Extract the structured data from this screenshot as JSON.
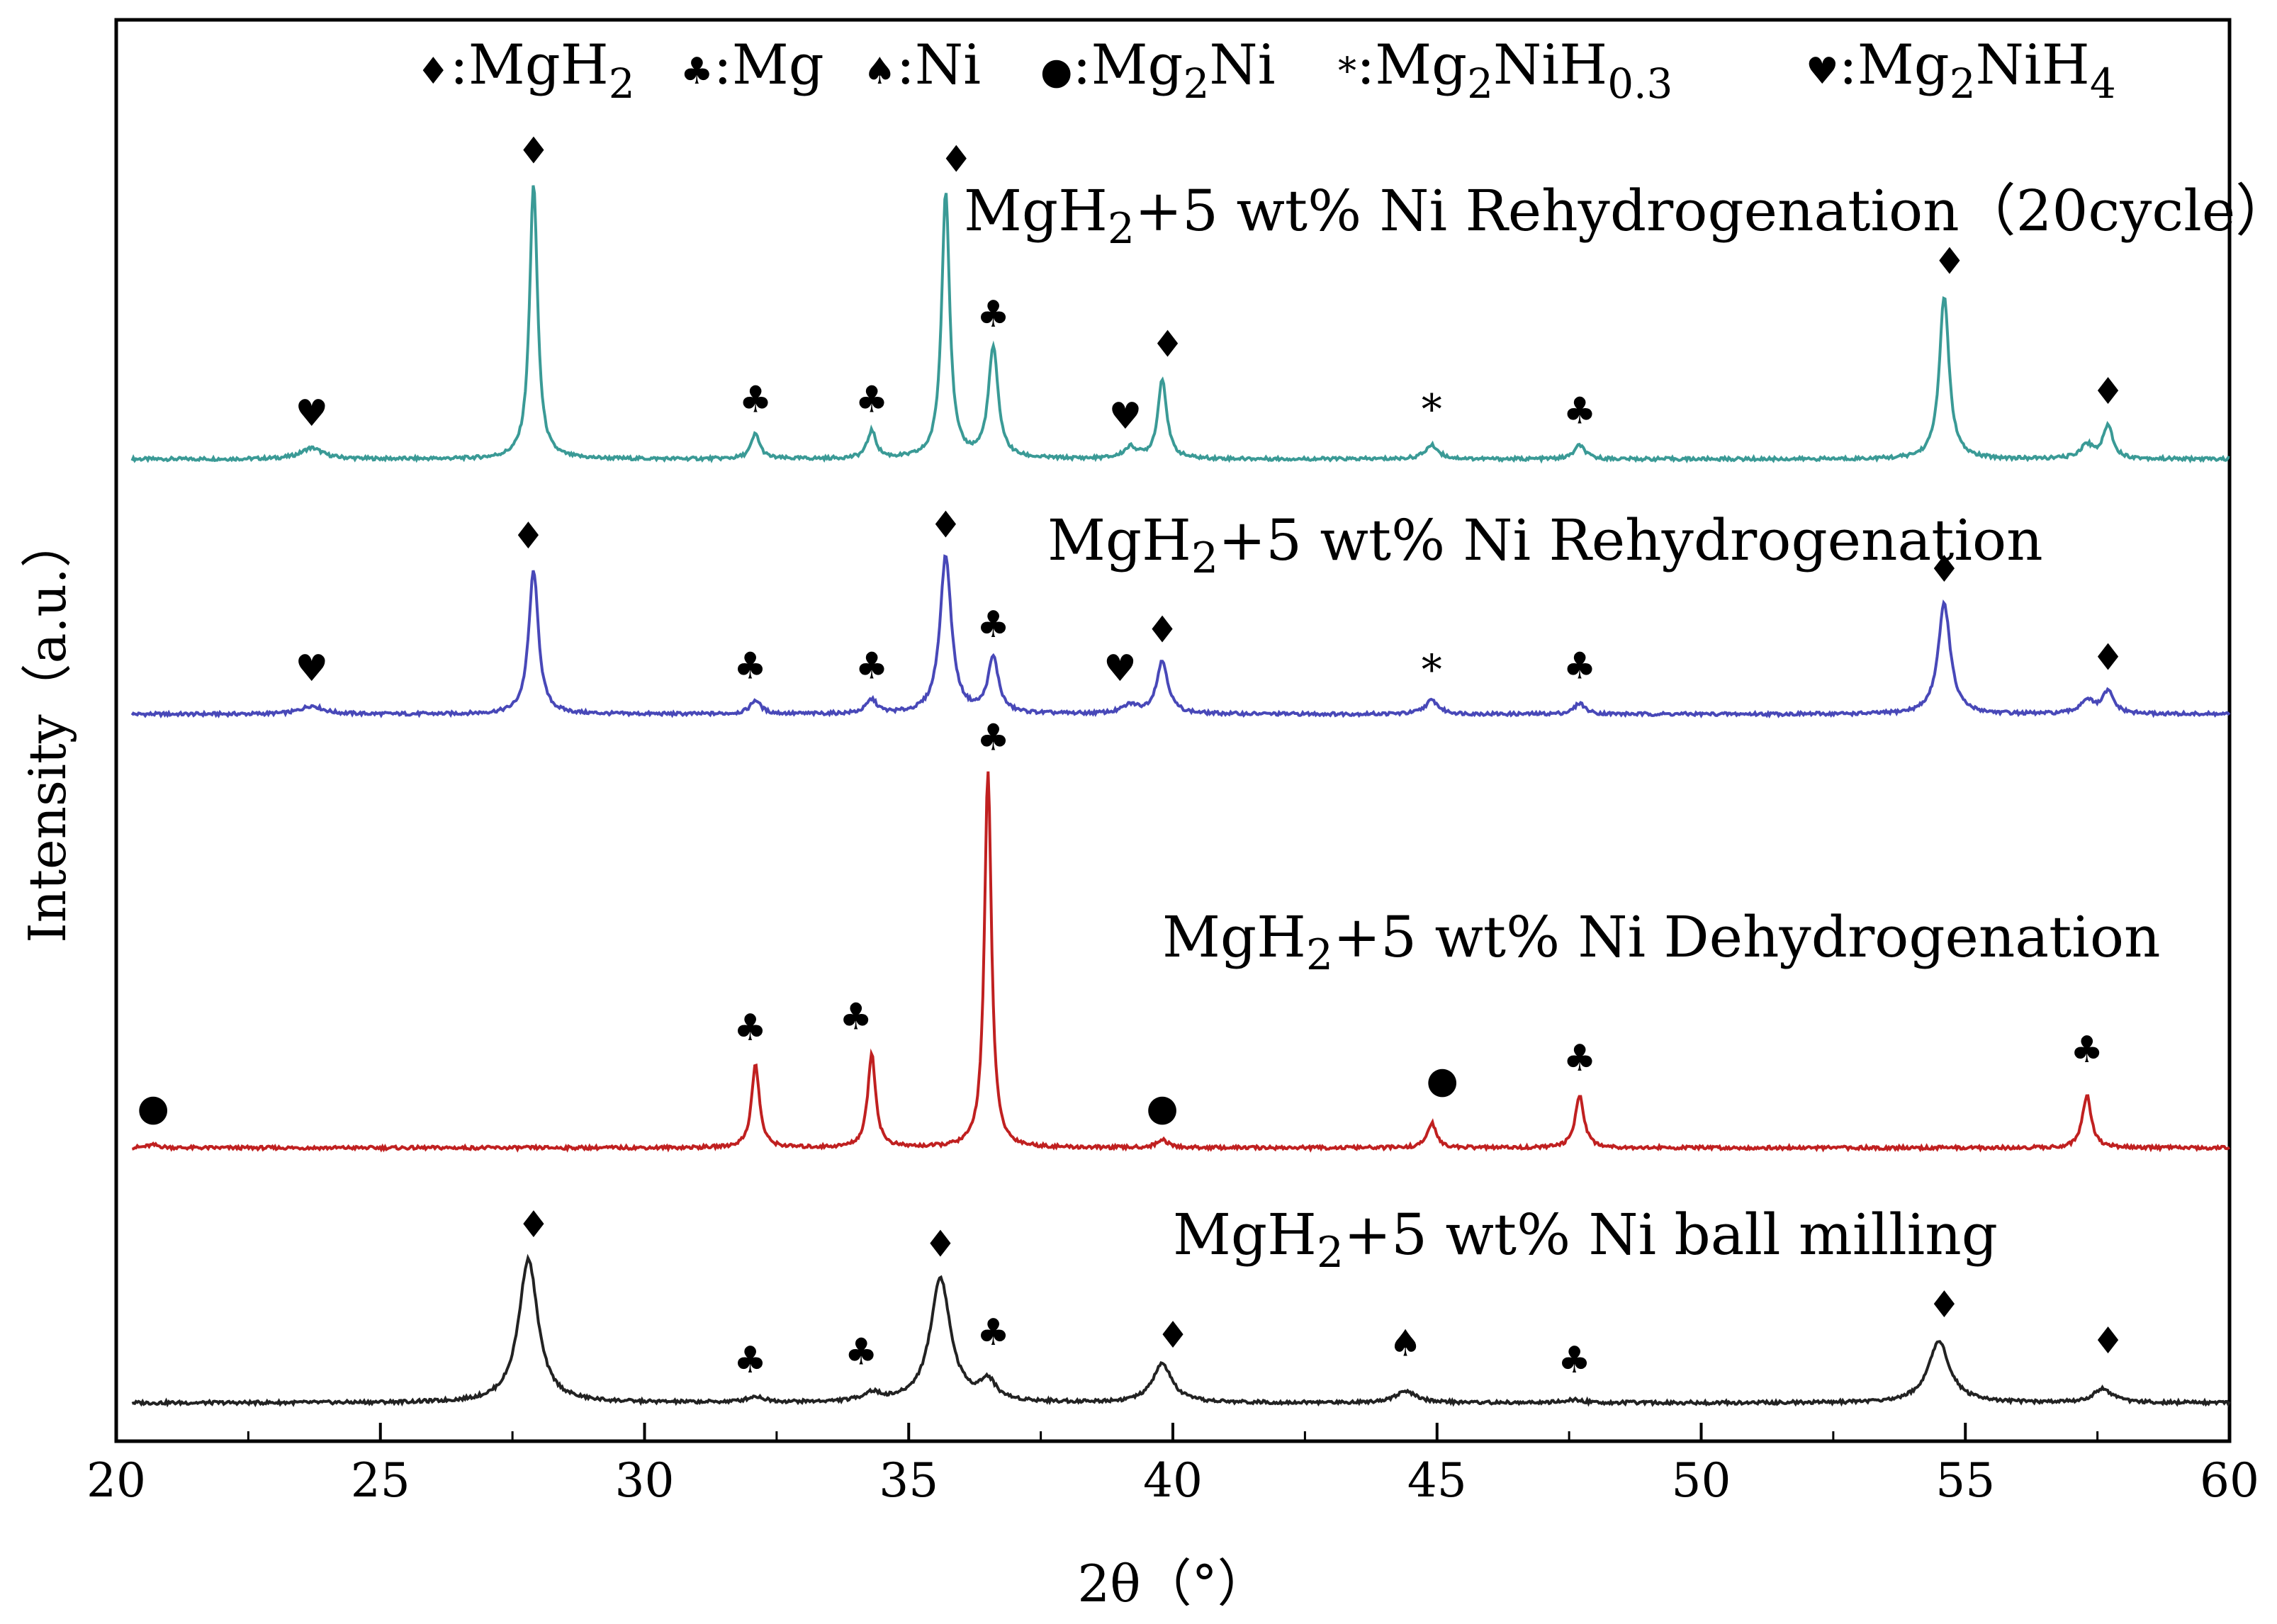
{
  "chart_data": {
    "type": "line",
    "title": "",
    "xlabel": "2θ（°）",
    "ylabel": "Intensity（a.u.）",
    "xlim": [
      20,
      60
    ],
    "x_ticks": [
      "20",
      "25",
      "30",
      "35",
      "40",
      "45",
      "50",
      "55",
      "60"
    ],
    "y_ticks": [],
    "legend": [
      {
        "symbol": "♦",
        "sep": ":",
        "name": "MgH",
        "sub": "2"
      },
      {
        "symbol": "♣",
        "sep": ":",
        "name": "Mg",
        "sub": ""
      },
      {
        "symbol": "♠",
        "sep": ":",
        "name": "Ni",
        "sub": ""
      },
      {
        "symbol": "●",
        "sep": ":",
        "name": "Mg",
        "sub": "2",
        "name2": "Ni"
      },
      {
        "symbol": "*",
        "sep": ":",
        "name": "Mg",
        "sub": "2",
        "name2": "NiH",
        "sub2": "0.3"
      },
      {
        "symbol": "♥",
        "sep": ":",
        "name": "Mg",
        "sub": "2",
        "name2": "NiH",
        "sub2": "4"
      }
    ],
    "series": [
      {
        "name": "MgH2+5 wt% Ni Rehydrogenation（20cycle）",
        "label_parts": [
          "MgH",
          "2",
          "+5 wt% Ni Rehydrogenation（20cycle）"
        ],
        "color": "#3a9a96",
        "baseline": 0.0,
        "peaks": [
          {
            "x": 23.7,
            "h": 0.04,
            "w": 0.25
          },
          {
            "x": 27.9,
            "h": 1.0,
            "w": 0.09
          },
          {
            "x": 32.1,
            "h": 0.09,
            "w": 0.1
          },
          {
            "x": 34.3,
            "h": 0.1,
            "w": 0.1
          },
          {
            "x": 35.7,
            "h": 0.97,
            "w": 0.09
          },
          {
            "x": 36.6,
            "h": 0.4,
            "w": 0.11
          },
          {
            "x": 39.2,
            "h": 0.04,
            "w": 0.15
          },
          {
            "x": 39.8,
            "h": 0.29,
            "w": 0.1
          },
          {
            "x": 44.9,
            "h": 0.05,
            "w": 0.15
          },
          {
            "x": 47.7,
            "h": 0.05,
            "w": 0.12
          },
          {
            "x": 54.6,
            "h": 0.59,
            "w": 0.11
          },
          {
            "x": 57.3,
            "h": 0.05,
            "w": 0.15
          },
          {
            "x": 57.7,
            "h": 0.12,
            "w": 0.11
          }
        ],
        "markers": [
          {
            "x": 23.7,
            "s": "♥",
            "y": 0.12
          },
          {
            "x": 27.9,
            "s": "♦",
            "y": 1.07
          },
          {
            "x": 32.1,
            "s": "♣",
            "y": 0.17
          },
          {
            "x": 34.3,
            "s": "♣",
            "y": 0.17
          },
          {
            "x": 35.9,
            "s": "♦",
            "y": 1.04
          },
          {
            "x": 36.6,
            "s": "♣",
            "y": 0.48
          },
          {
            "x": 39.1,
            "s": "♥",
            "y": 0.11
          },
          {
            "x": 39.9,
            "s": "♦",
            "y": 0.37
          },
          {
            "x": 44.9,
            "s": "*",
            "y": 0.13
          },
          {
            "x": 47.7,
            "s": "♣",
            "y": 0.13
          },
          {
            "x": 54.7,
            "s": "♦",
            "y": 0.67
          },
          {
            "x": 57.7,
            "s": "♦",
            "y": 0.2
          }
        ]
      },
      {
        "name": "MgH2+5 wt% Ni Rehydrogenation",
        "label_parts": [
          "MgH",
          "2",
          "+5 wt% Ni Rehydrogenation"
        ],
        "color": "#4848b8",
        "baseline": 0.0,
        "peaks": [
          {
            "x": 23.7,
            "h": 0.03,
            "w": 0.25
          },
          {
            "x": 27.9,
            "h": 0.52,
            "w": 0.11
          },
          {
            "x": 32.1,
            "h": 0.05,
            "w": 0.12
          },
          {
            "x": 34.3,
            "h": 0.05,
            "w": 0.12
          },
          {
            "x": 35.7,
            "h": 0.57,
            "w": 0.13
          },
          {
            "x": 36.6,
            "h": 0.2,
            "w": 0.12
          },
          {
            "x": 39.2,
            "h": 0.03,
            "w": 0.18
          },
          {
            "x": 39.8,
            "h": 0.19,
            "w": 0.13
          },
          {
            "x": 44.9,
            "h": 0.05,
            "w": 0.15
          },
          {
            "x": 47.7,
            "h": 0.04,
            "w": 0.12
          },
          {
            "x": 54.6,
            "h": 0.4,
            "w": 0.14
          },
          {
            "x": 57.3,
            "h": 0.05,
            "w": 0.15
          },
          {
            "x": 57.7,
            "h": 0.08,
            "w": 0.13
          }
        ],
        "markers": [
          {
            "x": 23.7,
            "s": "♥",
            "y": 0.12
          },
          {
            "x": 27.8,
            "s": "♦",
            "y": 0.6
          },
          {
            "x": 32.0,
            "s": "♣",
            "y": 0.13
          },
          {
            "x": 34.3,
            "s": "♣",
            "y": 0.13
          },
          {
            "x": 35.7,
            "s": "♦",
            "y": 0.64
          },
          {
            "x": 36.6,
            "s": "♣",
            "y": 0.28
          },
          {
            "x": 39.0,
            "s": "♥",
            "y": 0.12
          },
          {
            "x": 39.8,
            "s": "♦",
            "y": 0.26
          },
          {
            "x": 44.9,
            "s": "*",
            "y": 0.11
          },
          {
            "x": 47.7,
            "s": "♣",
            "y": 0.13
          },
          {
            "x": 54.6,
            "s": "♦",
            "y": 0.48
          },
          {
            "x": 57.7,
            "s": "♦",
            "y": 0.16
          }
        ]
      },
      {
        "name": "MgH2+5 wt% Ni Dehydrogenation",
        "label_parts": [
          "MgH",
          "2",
          "+5 wt% Ni Dehydrogenation"
        ],
        "color": "#c02020",
        "baseline": 0.0,
        "peaks": [
          {
            "x": 20.7,
            "h": 0.01,
            "w": 0.15
          },
          {
            "x": 32.1,
            "h": 0.3,
            "w": 0.09
          },
          {
            "x": 34.3,
            "h": 0.34,
            "w": 0.09
          },
          {
            "x": 36.5,
            "h": 1.36,
            "w": 0.08
          },
          {
            "x": 39.8,
            "h": 0.03,
            "w": 0.12
          },
          {
            "x": 44.9,
            "h": 0.09,
            "w": 0.1
          },
          {
            "x": 47.7,
            "h": 0.19,
            "w": 0.1
          },
          {
            "x": 57.3,
            "h": 0.19,
            "w": 0.1
          }
        ],
        "markers": [
          {
            "x": 20.7,
            "s": "●",
            "y": 0.1
          },
          {
            "x": 32.0,
            "s": "♣",
            "y": 0.39
          },
          {
            "x": 34.0,
            "s": "♣",
            "y": 0.43
          },
          {
            "x": 36.6,
            "s": "♣",
            "y": 1.44
          },
          {
            "x": 39.8,
            "s": "●",
            "y": 0.1
          },
          {
            "x": 45.1,
            "s": "●",
            "y": 0.2
          },
          {
            "x": 47.7,
            "s": "♣",
            "y": 0.28
          },
          {
            "x": 57.3,
            "s": "♣",
            "y": 0.31
          }
        ]
      },
      {
        "name": "MgH2+5 wt% Ni ball milling",
        "label_parts": [
          "MgH",
          "2",
          "+5 wt% Ni ball milling"
        ],
        "color": "#222222",
        "baseline": 0.0,
        "peaks": [
          {
            "x": 27.8,
            "h": 0.52,
            "w": 0.22
          },
          {
            "x": 32.1,
            "h": 0.02,
            "w": 0.2
          },
          {
            "x": 34.3,
            "h": 0.03,
            "w": 0.2
          },
          {
            "x": 35.6,
            "h": 0.45,
            "w": 0.23
          },
          {
            "x": 36.5,
            "h": 0.07,
            "w": 0.18
          },
          {
            "x": 39.8,
            "h": 0.14,
            "w": 0.22
          },
          {
            "x": 44.4,
            "h": 0.04,
            "w": 0.25
          },
          {
            "x": 47.6,
            "h": 0.01,
            "w": 0.2
          },
          {
            "x": 54.5,
            "h": 0.22,
            "w": 0.25
          },
          {
            "x": 57.6,
            "h": 0.05,
            "w": 0.22
          }
        ],
        "markers": [
          {
            "x": 27.9,
            "s": "♦",
            "y": 0.6
          },
          {
            "x": 32.0,
            "s": "♣",
            "y": 0.11
          },
          {
            "x": 34.1,
            "s": "♣",
            "y": 0.14
          },
          {
            "x": 35.6,
            "s": "♦",
            "y": 0.53
          },
          {
            "x": 36.6,
            "s": "♣",
            "y": 0.21
          },
          {
            "x": 40.0,
            "s": "♦",
            "y": 0.2
          },
          {
            "x": 44.4,
            "s": "♠",
            "y": 0.17
          },
          {
            "x": 47.6,
            "s": "♣",
            "y": 0.11
          },
          {
            "x": 54.6,
            "s": "♦",
            "y": 0.31
          },
          {
            "x": 57.7,
            "s": "♦",
            "y": 0.18
          }
        ]
      }
    ]
  }
}
